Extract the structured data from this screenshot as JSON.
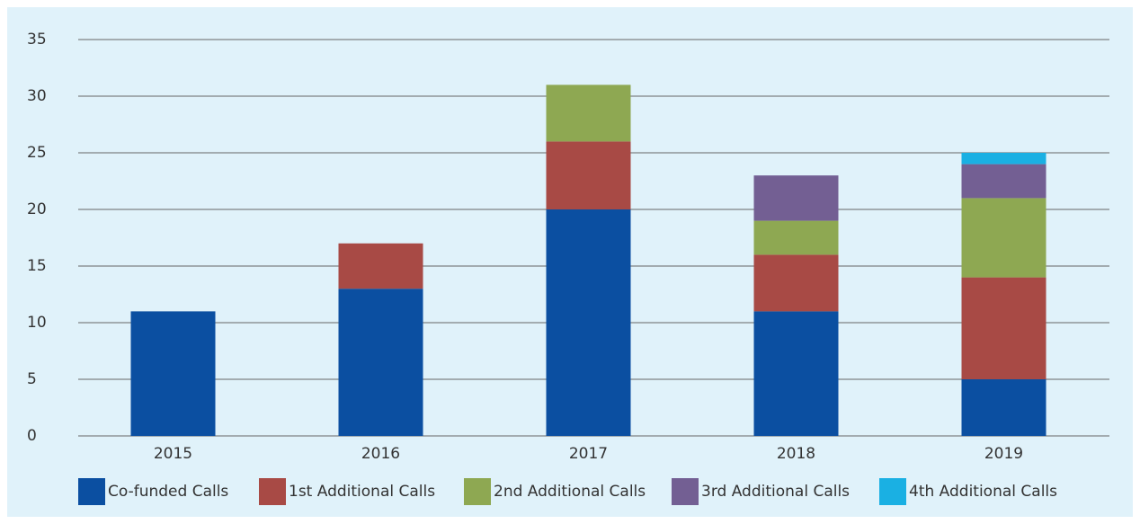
{
  "chart_data": {
    "type": "stacked_bar",
    "categories": [
      "2015",
      "2016",
      "2017",
      "2018",
      "2019"
    ],
    "series": [
      {
        "name": "Co-funded Calls",
        "color": "#0b4fa1",
        "values": [
          11,
          13,
          20,
          11,
          5
        ]
      },
      {
        "name": "1st Additional Calls",
        "color": "#a84a45",
        "values": [
          0,
          4,
          6,
          5,
          9
        ]
      },
      {
        "name": "2nd Additional Calls",
        "color": "#8ea852",
        "values": [
          0,
          0,
          5,
          3,
          7
        ]
      },
      {
        "name": "3rd Additional Calls",
        "color": "#735f93",
        "values": [
          0,
          0,
          0,
          4,
          3
        ]
      },
      {
        "name": "4th Additional Calls",
        "color": "#1ab0e3",
        "values": [
          0,
          0,
          0,
          0,
          1
        ]
      }
    ],
    "ylim": [
      0,
      35
    ],
    "yticks": [
      0,
      5,
      10,
      15,
      20,
      25,
      30,
      35
    ],
    "grid": true,
    "legend": "bottom"
  }
}
